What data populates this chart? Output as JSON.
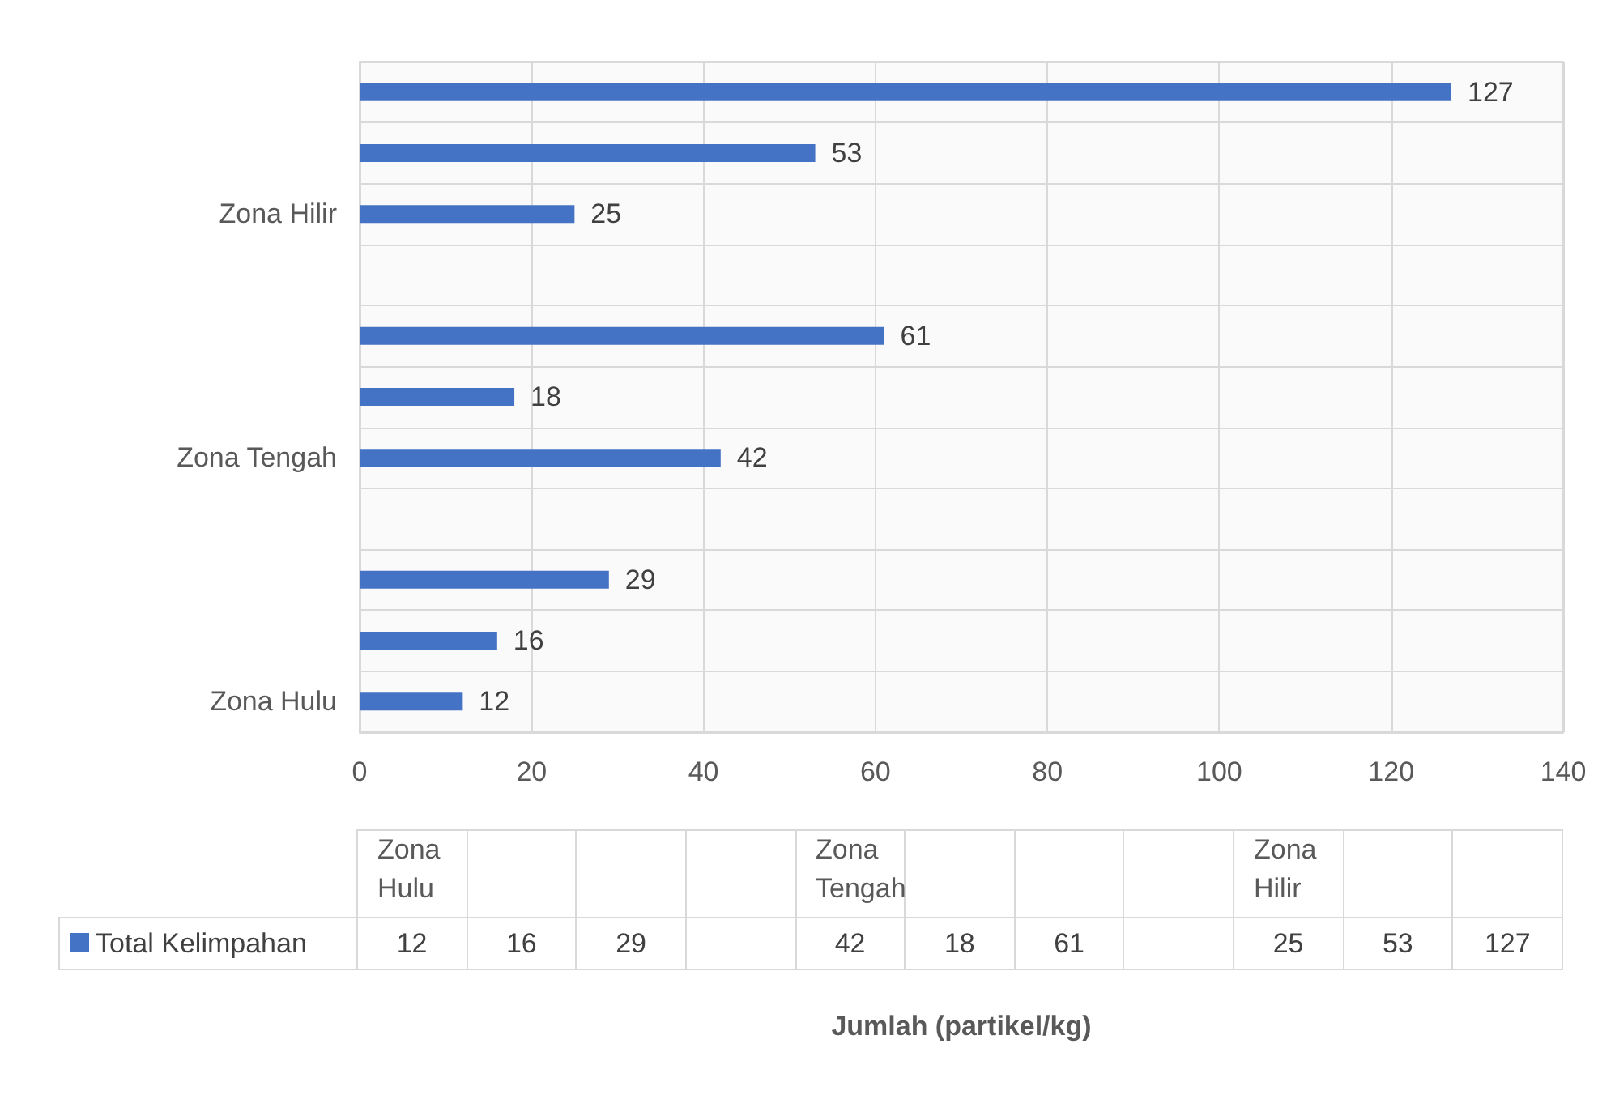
{
  "chart_data": [
    {
      "type": "bar",
      "orientation": "horizontal",
      "categories": [
        null,
        null,
        "Zona Hilir",
        null,
        null,
        null,
        "Zona Tengah",
        null,
        null,
        null,
        "Zona Hulu"
      ],
      "series": [
        {
          "color": "#4472c4",
          "values": [
            127,
            53,
            25,
            null,
            61,
            18,
            42,
            null,
            29,
            16,
            12
          ]
        }
      ],
      "xlim": [
        0,
        140
      ],
      "xticks": [
        0,
        20,
        40,
        60,
        80,
        100,
        120,
        140
      ],
      "grid": true,
      "data_labels": true
    },
    {
      "type": "other",
      "categories": [
        "Zona Hulu",
        null,
        null,
        null,
        "Zona Tengah",
        null,
        null,
        null,
        "Zona Hilir",
        null,
        null
      ],
      "series": [
        {
          "name": "Total Kelimpahan",
          "color": "#4472c4",
          "values": [
            12,
            16,
            29,
            null,
            42,
            18,
            61,
            null,
            25,
            53,
            127
          ]
        }
      ],
      "data_labels": true,
      "legend": "left",
      "annotations": [
        "Jumlah (partikel/kg)"
      ]
    }
  ]
}
